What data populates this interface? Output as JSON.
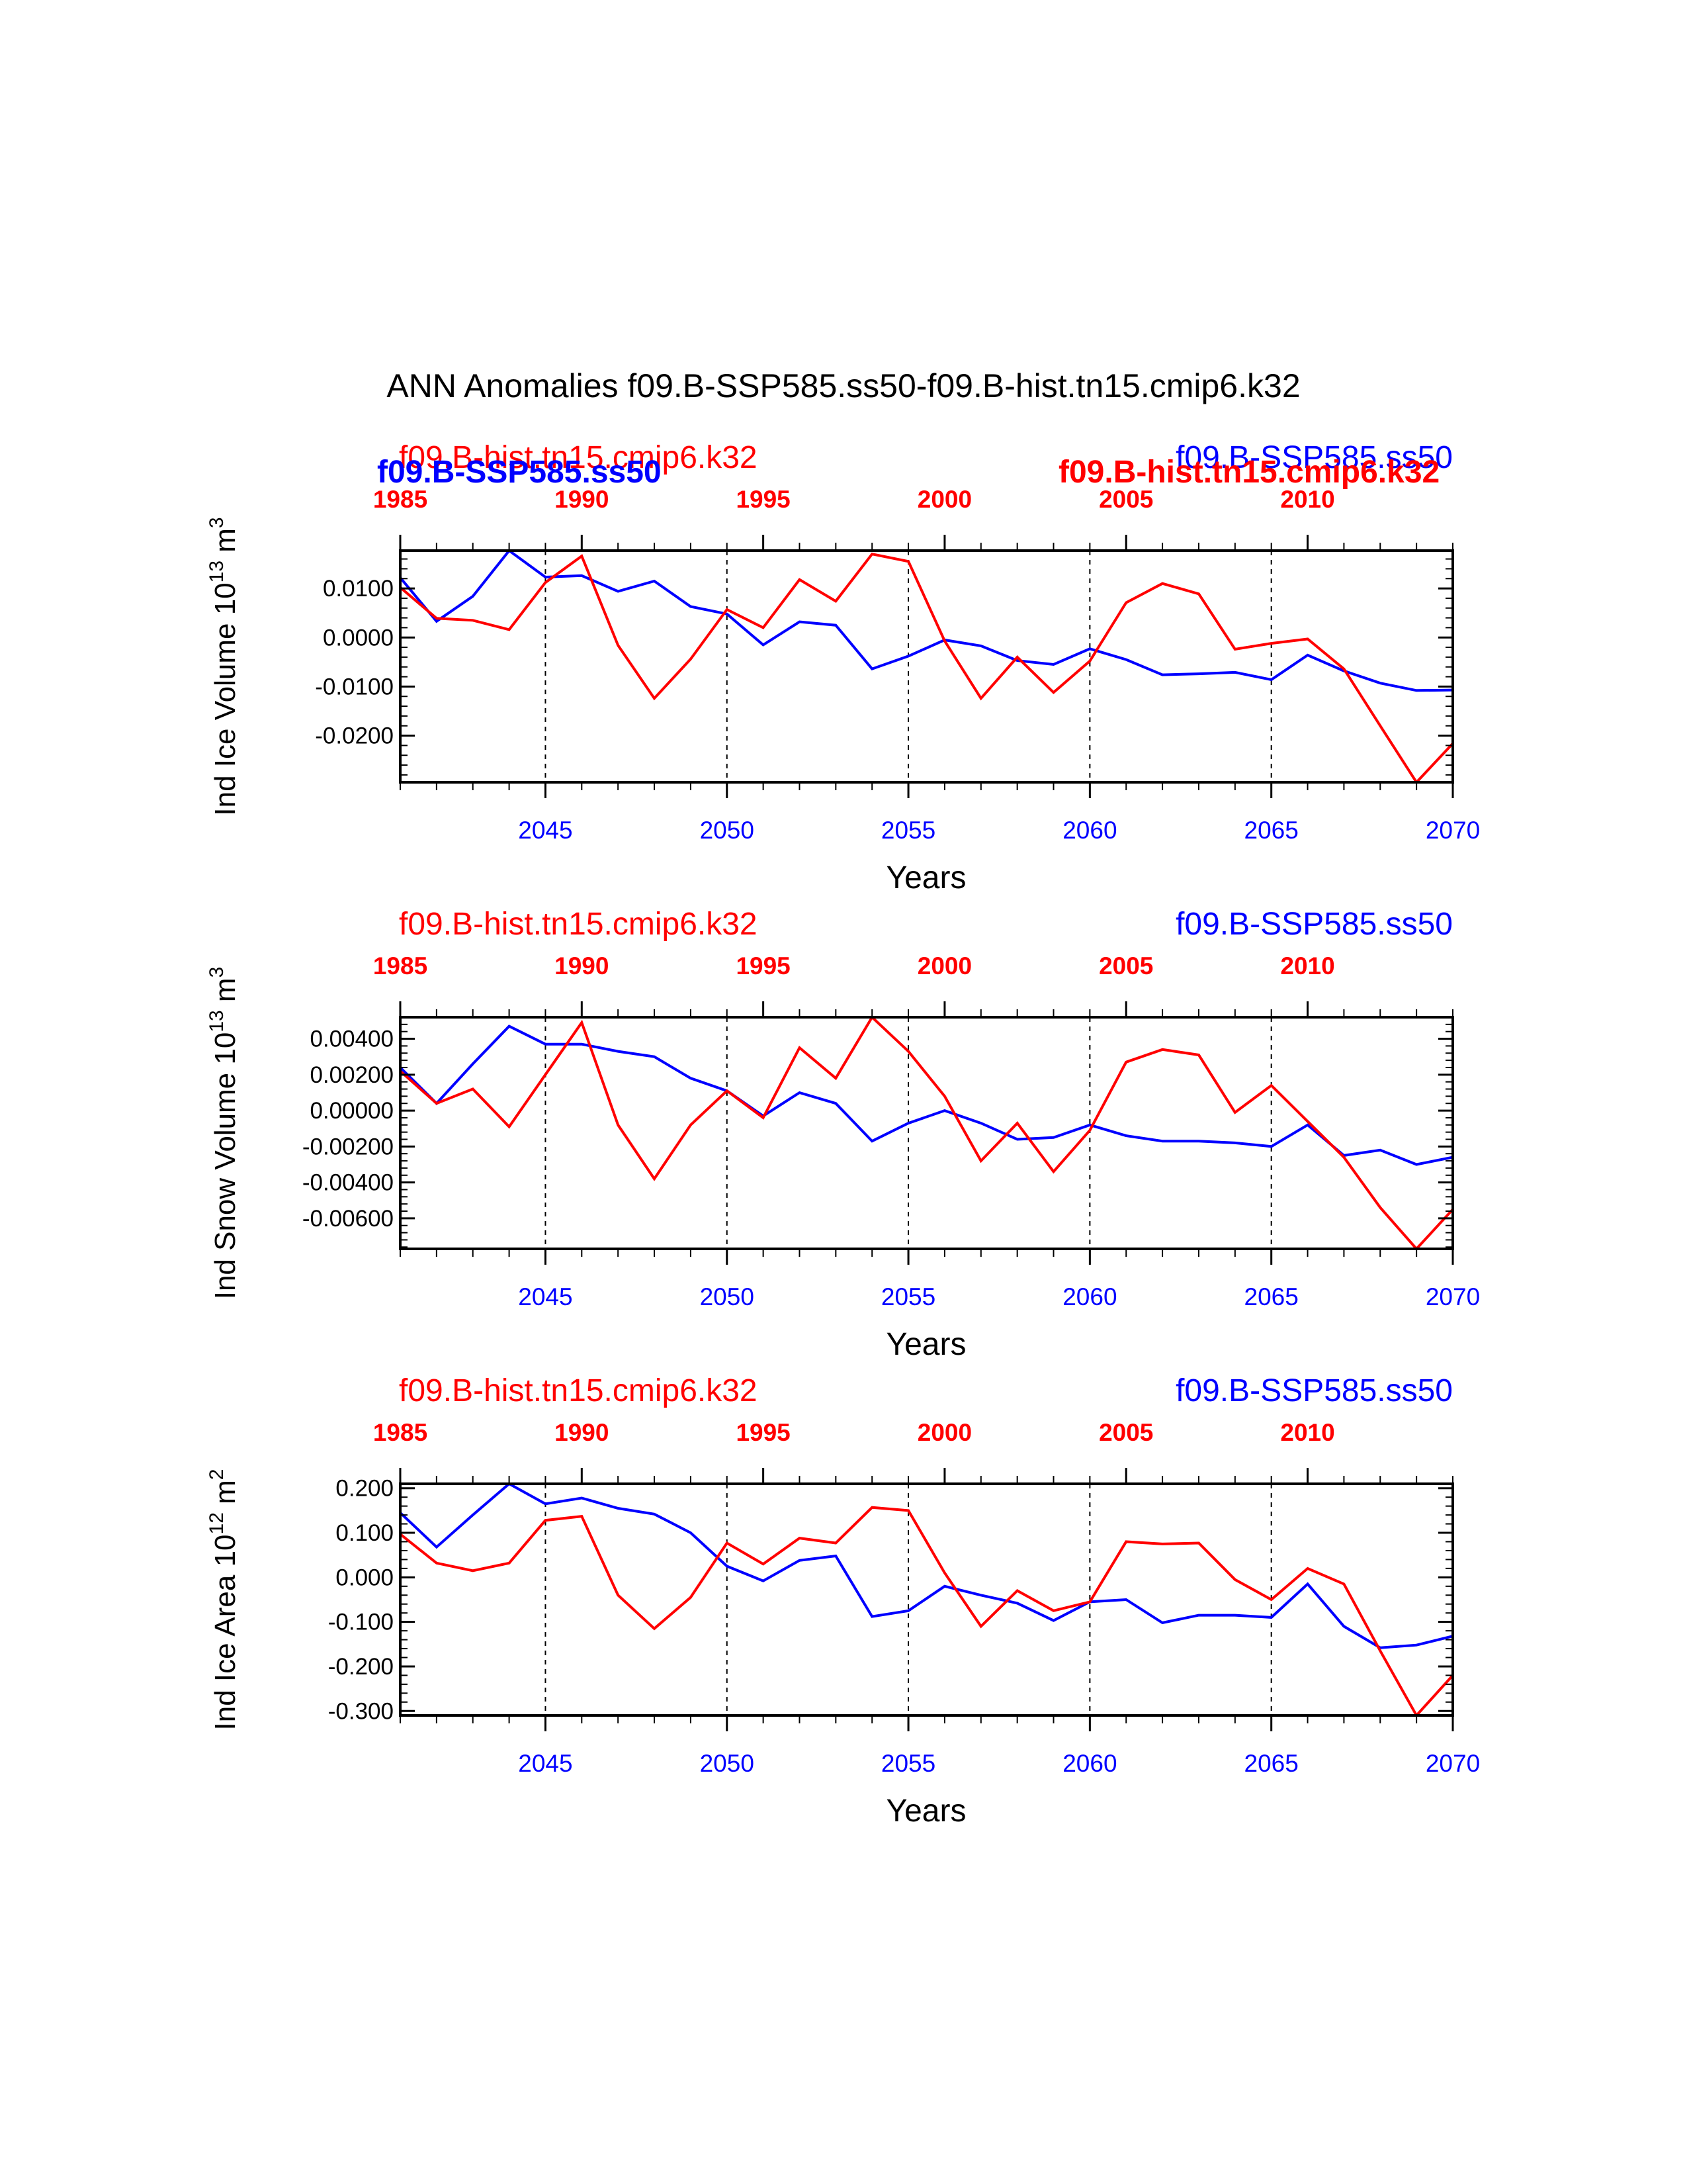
{
  "title": "ANN Anomalies f09.B-SSP585.ss50-f09.B-hist.tn15.cmip6.k32",
  "colors": {
    "case_a": "#0000ff",
    "case_b": "#ff0000",
    "axis": "#000000",
    "background": "#ffffff"
  },
  "chart_data": [
    {
      "type": "line",
      "ylabel": "Ind Ice Volume 10",
      "ylabel_exp": "13",
      "ylabel_unit": "m",
      "ylabel_unit_exp": "3",
      "xlabel": "Years",
      "ylim": [
        -0.0295,
        0.0177
      ],
      "yticks": [
        0.01,
        0.0,
        -0.01,
        -0.02
      ],
      "ytick_labels": [
        "0.0100",
        "0.0000",
        "-0.0100",
        "-0.0200"
      ],
      "legend_left": "f09.B-hist.tn15.cmip6.k32",
      "legend_right": "f09.B-SSP585.ss50",
      "overlap_left": "f09.B-SSP585.ss50",
      "overlap_right": "f09.B-hist.tn15.cmip6.k32",
      "series": [
        {
          "name": "f09.B-SSP585.ss50",
          "color": "#0000ff",
          "x_axis": "bottom",
          "x": [
            2041,
            2042,
            2043,
            2044,
            2045,
            2046,
            2047,
            2048,
            2049,
            2050,
            2051,
            2052,
            2053,
            2054,
            2055,
            2056,
            2057,
            2058,
            2059,
            2060,
            2061,
            2062,
            2063,
            2064,
            2065,
            2066,
            2067,
            2068,
            2069,
            2070
          ],
          "values": [
            0.0122,
            0.0033,
            0.0084,
            0.0177,
            0.0123,
            0.0126,
            0.0094,
            0.0115,
            0.0063,
            0.0048,
            -0.0015,
            0.0032,
            0.0025,
            -0.0064,
            -0.0038,
            -0.0005,
            -0.0017,
            -0.0047,
            -0.0055,
            -0.0023,
            -0.0045,
            -0.0076,
            -0.0074,
            -0.0071,
            -0.0086,
            -0.0036,
            -0.0068,
            -0.0093,
            -0.0108,
            -0.0107
          ]
        },
        {
          "name": "f09.B-hist.tn15.cmip6.k32",
          "color": "#ff0000",
          "x_axis": "top",
          "x": [
            1985,
            1986,
            1987,
            1988,
            1989,
            1990,
            1991,
            1992,
            1993,
            1994,
            1995,
            1996,
            1997,
            1998,
            1999,
            2000,
            2001,
            2002,
            2003,
            2004,
            2005,
            2006,
            2007,
            2008,
            2009,
            2010,
            2011,
            2012,
            2013,
            2014
          ],
          "values": [
            0.0102,
            0.0039,
            0.0035,
            0.0016,
            0.0112,
            0.0166,
            -0.0016,
            -0.0124,
            -0.0044,
            0.0057,
            0.002,
            0.0118,
            0.0074,
            0.017,
            0.0155,
            -0.0007,
            -0.0124,
            -0.004,
            -0.0112,
            -0.0048,
            0.0071,
            0.011,
            0.0089,
            -0.0024,
            -0.0012,
            -0.0003,
            -0.0064,
            -0.018,
            -0.0295,
            -0.0216
          ]
        }
      ],
      "bottom_ticks": [
        2045,
        2050,
        2055,
        2060,
        2065,
        2070
      ],
      "top_ticks": [
        1985,
        1990,
        1995,
        2000,
        2005,
        2010
      ]
    },
    {
      "type": "line",
      "ylabel": "Ind Snow Volume 10",
      "ylabel_exp": "13",
      "ylabel_unit": "m",
      "ylabel_unit_exp": "3",
      "xlabel": "Years",
      "ylim": [
        -0.0077,
        0.0052
      ],
      "yticks": [
        0.004,
        0.002,
        0.0,
        -0.002,
        -0.004,
        -0.006
      ],
      "ytick_labels": [
        "0.00400",
        "0.00200",
        "0.00000",
        "-0.00200",
        "-0.00400",
        "-0.00600"
      ],
      "legend_left": "f09.B-hist.tn15.cmip6.k32",
      "legend_right": "f09.B-SSP585.ss50",
      "series": [
        {
          "name": "f09.B-SSP585.ss50",
          "color": "#0000ff",
          "x_axis": "bottom",
          "x": [
            2041,
            2042,
            2043,
            2044,
            2045,
            2046,
            2047,
            2048,
            2049,
            2050,
            2051,
            2052,
            2053,
            2054,
            2055,
            2056,
            2057,
            2058,
            2059,
            2060,
            2061,
            2062,
            2063,
            2064,
            2065,
            2066,
            2067,
            2068,
            2069,
            2070
          ],
          "values": [
            0.0024,
            0.0004,
            0.0026,
            0.0047,
            0.0037,
            0.0037,
            0.0033,
            0.003,
            0.0018,
            0.0011,
            -0.0003,
            0.001,
            0.0004,
            -0.0017,
            -0.0007,
            0.0,
            -0.0007,
            -0.0016,
            -0.0015,
            -0.0008,
            -0.0014,
            -0.0017,
            -0.0017,
            -0.0018,
            -0.002,
            -0.0008,
            -0.0025,
            -0.0022,
            -0.003,
            -0.0026
          ]
        },
        {
          "name": "f09.B-hist.tn15.cmip6.k32",
          "color": "#ff0000",
          "x_axis": "top",
          "x": [
            1985,
            1986,
            1987,
            1988,
            1989,
            1990,
            1991,
            1992,
            1993,
            1994,
            1995,
            1996,
            1997,
            1998,
            1999,
            2000,
            2001,
            2002,
            2003,
            2004,
            2005,
            2006,
            2007,
            2008,
            2009,
            2010,
            2011,
            2012,
            2013,
            2014
          ],
          "values": [
            0.0022,
            0.0004,
            0.0012,
            -0.0009,
            0.002,
            0.0049,
            -0.0008,
            -0.0038,
            -0.0008,
            0.0011,
            -0.0004,
            0.0035,
            0.0018,
            0.0052,
            0.0033,
            0.0008,
            -0.0028,
            -0.0007,
            -0.0034,
            -0.0011,
            0.0027,
            0.0034,
            0.0031,
            -0.0001,
            0.0014,
            -0.0006,
            -0.0026,
            -0.0054,
            -0.0077,
            -0.0055
          ]
        }
      ],
      "bottom_ticks": [
        2045,
        2050,
        2055,
        2060,
        2065,
        2070
      ],
      "top_ticks": [
        1985,
        1990,
        1995,
        2000,
        2005,
        2010
      ]
    },
    {
      "type": "line",
      "ylabel": "Ind Ice Area 10",
      "ylabel_exp": "12",
      "ylabel_unit": "m",
      "ylabel_unit_exp": "2",
      "xlabel": "Years",
      "ylim": [
        -0.31,
        0.21
      ],
      "yticks": [
        0.2,
        0.1,
        0.0,
        -0.1,
        -0.2,
        -0.3
      ],
      "ytick_labels": [
        "0.200",
        "0.100",
        "0.000",
        "-0.100",
        "-0.200",
        "-0.300"
      ],
      "legend_left": "f09.B-hist.tn15.cmip6.k32",
      "legend_right": "f09.B-SSP585.ss50",
      "series": [
        {
          "name": "f09.B-SSP585.ss50",
          "color": "#0000ff",
          "x_axis": "bottom",
          "x": [
            2041,
            2042,
            2043,
            2044,
            2045,
            2046,
            2047,
            2048,
            2049,
            2050,
            2051,
            2052,
            2053,
            2054,
            2055,
            2056,
            2057,
            2058,
            2059,
            2060,
            2061,
            2062,
            2063,
            2064,
            2065,
            2066,
            2067,
            2068,
            2069,
            2070
          ],
          "values": [
            0.145,
            0.068,
            0.14,
            0.21,
            0.165,
            0.178,
            0.155,
            0.142,
            0.1,
            0.025,
            -0.008,
            0.038,
            0.048,
            -0.088,
            -0.075,
            -0.02,
            -0.04,
            -0.058,
            -0.097,
            -0.055,
            -0.05,
            -0.102,
            -0.085,
            -0.085,
            -0.09,
            -0.015,
            -0.11,
            -0.158,
            -0.152,
            -0.132
          ]
        },
        {
          "name": "f09.B-hist.tn15.cmip6.k32",
          "color": "#ff0000",
          "x_axis": "top",
          "x": [
            1985,
            1986,
            1987,
            1988,
            1989,
            1990,
            1991,
            1992,
            1993,
            1994,
            1995,
            1996,
            1997,
            1998,
            1999,
            2000,
            2001,
            2002,
            2003,
            2004,
            2005,
            2006,
            2007,
            2008,
            2009,
            2010,
            2011,
            2012,
            2013,
            2014
          ],
          "values": [
            0.097,
            0.032,
            0.015,
            0.032,
            0.128,
            0.137,
            -0.04,
            -0.115,
            -0.045,
            0.077,
            0.03,
            0.088,
            0.077,
            0.157,
            0.15,
            0.01,
            -0.11,
            -0.03,
            -0.075,
            -0.055,
            0.08,
            0.075,
            0.077,
            -0.005,
            -0.05,
            0.02,
            -0.015,
            -0.165,
            -0.31,
            -0.22
          ]
        }
      ],
      "bottom_ticks": [
        2045,
        2050,
        2055,
        2060,
        2065,
        2070
      ],
      "top_ticks": [
        1985,
        1990,
        1995,
        2000,
        2005,
        2010
      ]
    }
  ]
}
